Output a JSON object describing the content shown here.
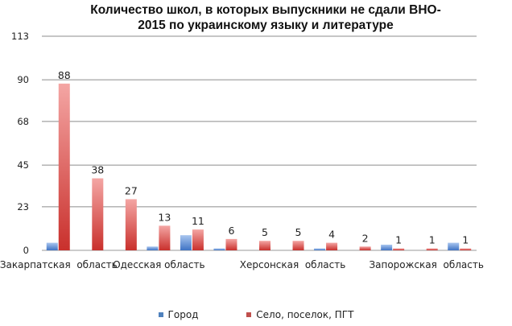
{
  "chart_data": {
    "type": "bar",
    "title_lines": [
      "Количество школ, в которых выпускники не сдали ВНО-",
      "2015 по украинскому языку и литературе"
    ],
    "yticks": [
      "113",
      "90",
      "68",
      "45",
      "23",
      "0"
    ],
    "ylim": [
      0,
      113
    ],
    "grid": true,
    "legend_position": "bottom",
    "x_tick_labels": [
      "Закарпатская  область",
      "Одесская область",
      "Херсонская  область",
      "Запорожская  область"
    ],
    "categories": [
      "",
      "",
      "",
      "",
      "",
      "",
      "",
      "",
      "",
      "",
      "",
      "",
      ""
    ],
    "series": [
      {
        "name": "Город",
        "color": "#4f81bd",
        "values": [
          4,
          0,
          0,
          2,
          8,
          1,
          0,
          0,
          1,
          0,
          3,
          0,
          4
        ]
      },
      {
        "name": "Село, поселок, ПГТ",
        "color": "#c0504d",
        "values": [
          88,
          38,
          27,
          13,
          11,
          6,
          5,
          5,
          4,
          2,
          1,
          1,
          1
        ],
        "data_labels": [
          "88",
          "38",
          "27",
          "13",
          "11",
          "6",
          "5",
          "5",
          "4",
          "2",
          "1",
          "1",
          "1"
        ]
      }
    ]
  }
}
